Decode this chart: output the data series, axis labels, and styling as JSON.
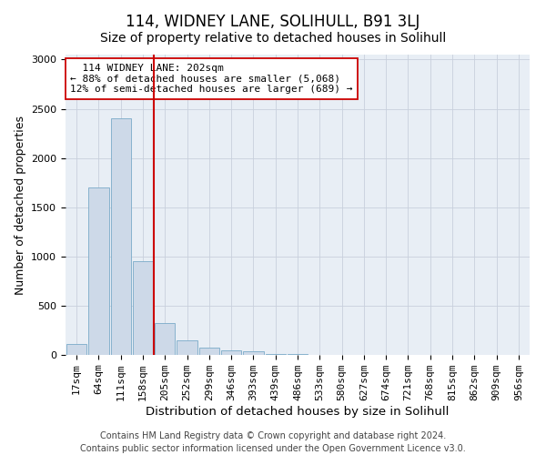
{
  "title": "114, WIDNEY LANE, SOLIHULL, B91 3LJ",
  "subtitle": "Size of property relative to detached houses in Solihull",
  "xlabel": "Distribution of detached houses by size in Solihull",
  "ylabel": "Number of detached properties",
  "footer_line1": "Contains HM Land Registry data © Crown copyright and database right 2024.",
  "footer_line2": "Contains public sector information licensed under the Open Government Licence v3.0.",
  "categories": [
    "17sqm",
    "64sqm",
    "111sqm",
    "158sqm",
    "205sqm",
    "252sqm",
    "299sqm",
    "346sqm",
    "393sqm",
    "439sqm",
    "486sqm",
    "533sqm",
    "580sqm",
    "627sqm",
    "674sqm",
    "721sqm",
    "768sqm",
    "815sqm",
    "862sqm",
    "909sqm",
    "956sqm"
  ],
  "values": [
    110,
    1700,
    2400,
    950,
    325,
    150,
    75,
    50,
    35,
    10,
    5,
    4,
    3,
    2,
    1,
    1,
    1,
    0,
    0,
    0,
    0
  ],
  "bar_color": "#cdd9e8",
  "bar_edge_color": "#7aaac8",
  "vline_x_index": 3,
  "vline_color": "#cc0000",
  "annotation_line1": "  114 WIDNEY LANE: 202sqm",
  "annotation_line2": "← 88% of detached houses are smaller (5,068)",
  "annotation_line3": "12% of semi-detached houses are larger (689) →",
  "annotation_box_color": "#ffffff",
  "annotation_box_edge": "#cc0000",
  "ylim": [
    0,
    3050
  ],
  "yticks": [
    0,
    500,
    1000,
    1500,
    2000,
    2500,
    3000
  ],
  "background_color": "#ffffff",
  "plot_bg_color": "#e8eef5",
  "grid_color": "#c8d0dc",
  "title_fontsize": 12,
  "subtitle_fontsize": 10,
  "axis_label_fontsize": 9,
  "tick_fontsize": 8,
  "annot_fontsize": 8,
  "footer_fontsize": 7
}
